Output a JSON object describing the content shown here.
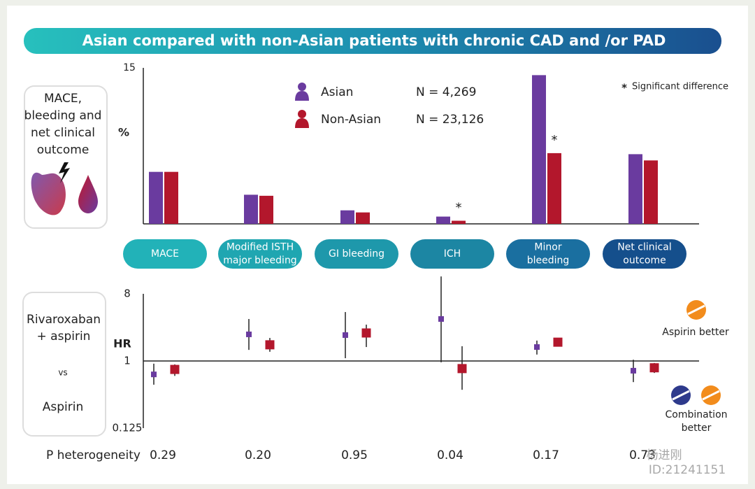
{
  "header": {
    "title": "Asian compared with non-Asian patients with chronic CAD and /or PAD"
  },
  "chart_data": [
    {
      "type": "bar",
      "panel_label": [
        "MACE,",
        "bleeding and",
        "net clinical",
        "outcome"
      ],
      "y_label": "%",
      "categories": [
        [
          "MACE"
        ],
        [
          "Modified ISTH",
          "major bleeding"
        ],
        [
          "GI bleeding"
        ],
        [
          "ICH"
        ],
        [
          "Minor",
          "bleeding"
        ],
        [
          "Net clinical",
          "outcome"
        ]
      ],
      "series": [
        {
          "name": "Asian",
          "sample_size": "N = 4,269",
          "color": "#6a3b9f",
          "values": [
            5.0,
            2.8,
            1.3,
            0.7,
            14.3,
            6.7
          ],
          "significant": [
            false,
            false,
            false,
            false,
            false,
            false
          ]
        },
        {
          "name": "Non-Asian",
          "sample_size": "N = 23,126",
          "color": "#b3172c",
          "values": [
            5.0,
            2.7,
            1.1,
            0.3,
            6.8,
            6.1
          ],
          "significant": [
            false,
            false,
            false,
            true,
            true,
            false
          ]
        }
      ],
      "significance_symbol": "*",
      "significance_note": "Significant difference",
      "ylim": [
        0,
        15
      ],
      "yticks": [
        15
      ]
    },
    {
      "type": "forest",
      "panel_label": [
        "Rivaroxaban",
        "+ aspirin"
      ],
      "vs": "vs",
      "comparator": "Aspirin",
      "y_label": "HR",
      "log_scale": true,
      "ylim": [
        0.125,
        8
      ],
      "yticks": [
        0.125,
        1,
        8
      ],
      "reference_line": 1,
      "series": [
        {
          "color": "#6a3b9f",
          "values": [
            0.66,
            2.28,
            2.23,
            3.67,
            1.54,
            0.74
          ],
          "ci_low": [
            0.48,
            1.41,
            1.09,
            0.96,
            1.22,
            0.52
          ],
          "ci_high": [
            0.92,
            3.67,
            4.55,
            13.7,
            1.88,
            1.04
          ]
        },
        {
          "color": "#b3172c",
          "values": [
            0.77,
            1.65,
            2.38,
            0.79,
            1.79,
            0.81
          ],
          "ci_low": [
            0.63,
            1.33,
            1.54,
            0.41,
            1.58,
            0.69
          ],
          "ci_high": [
            0.9,
            2.04,
            3.08,
            1.58,
            2.04,
            0.94
          ]
        }
      ],
      "direction_labels": {
        "top": "Aspirin better",
        "bottom": [
          "Combination",
          "better"
        ]
      },
      "p_heterogeneity": {
        "label": "P heterogeneity",
        "values": [
          0.29,
          0.2,
          0.95,
          0.04,
          0.17,
          0.73
        ],
        "value_labels": [
          "0.29",
          "0.20",
          "0.95",
          "0.04",
          "0.17",
          "0.73"
        ]
      }
    }
  ],
  "watermark": [
    "杨进刚",
    "ID:21241151"
  ]
}
